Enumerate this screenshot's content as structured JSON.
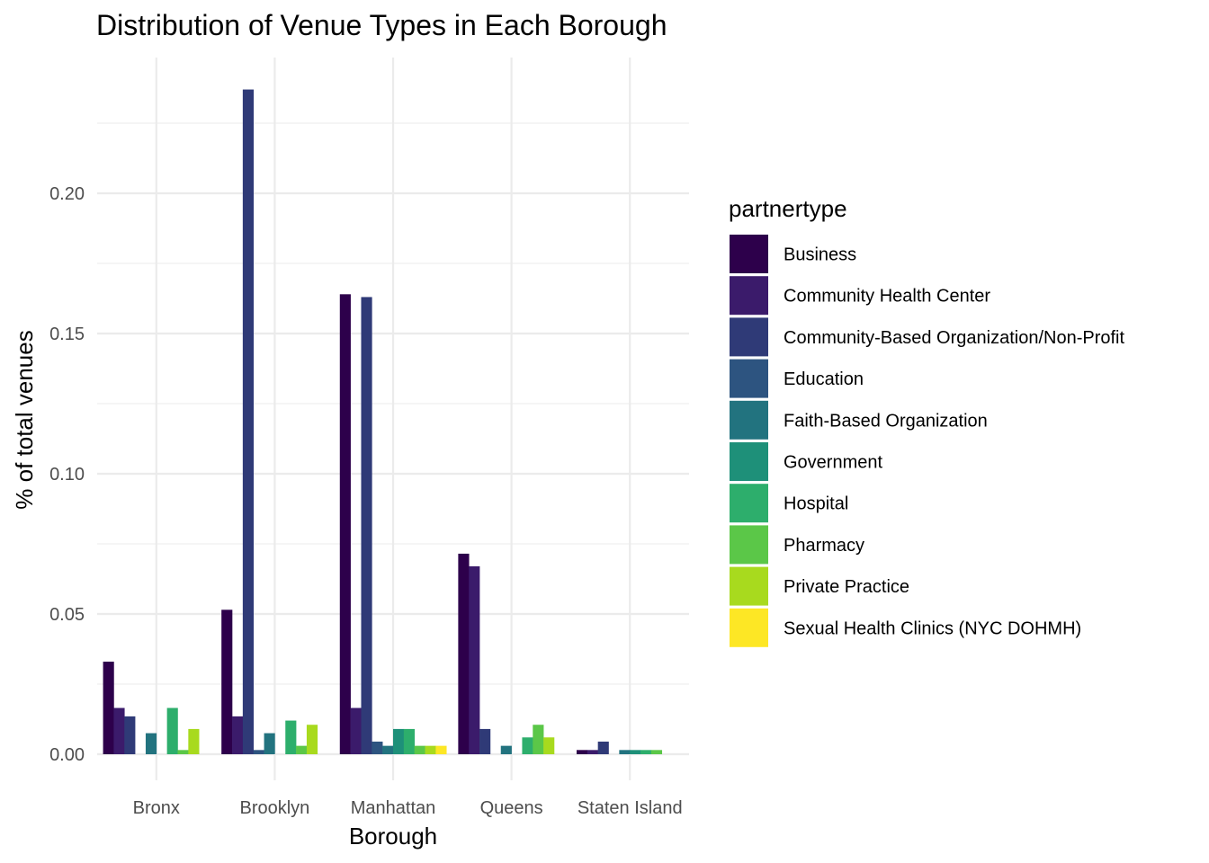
{
  "chart_data": {
    "type": "bar",
    "title": "Distribution of Venue Types in Each Borough",
    "xlabel": "Borough",
    "ylabel": "% of total venues",
    "legend_title": "partnertype",
    "legend_position": "right",
    "grid": true,
    "ylim": [
      0,
      0.24
    ],
    "yticks": [
      "0.00",
      "0.05",
      "0.10",
      "0.15",
      "0.20"
    ],
    "categories": [
      "Bronx",
      "Brooklyn",
      "Manhattan",
      "Queens",
      "Staten Island"
    ],
    "series": [
      {
        "name": "Business",
        "color": "#2D004B",
        "values": [
          0.033,
          0.0515,
          0.164,
          0.0715,
          0.0015
        ]
      },
      {
        "name": "Community Health Center",
        "color": "#3B1B6B",
        "values": [
          0.0165,
          0.0135,
          0.0165,
          0.067,
          0.0015
        ]
      },
      {
        "name": "Community-Based Organization/Non-Profit",
        "color": "#2F3A77",
        "values": [
          0.0135,
          0.237,
          0.163,
          0.009,
          0.0045
        ]
      },
      {
        "name": "Education",
        "color": "#2D5480",
        "values": [
          null,
          0.0015,
          0.0045,
          null,
          null
        ]
      },
      {
        "name": "Faith-Based Organization",
        "color": "#22737F",
        "values": [
          0.0075,
          0.0075,
          0.003,
          0.003,
          0.0015
        ]
      },
      {
        "name": "Government",
        "color": "#1E9079",
        "values": [
          null,
          null,
          0.009,
          null,
          0.0015
        ]
      },
      {
        "name": "Hospital",
        "color": "#2DAE6C",
        "values": [
          0.0165,
          0.012,
          0.009,
          0.006,
          0.0015
        ]
      },
      {
        "name": "Pharmacy",
        "color": "#5BC748",
        "values": [
          0.0015,
          0.003,
          0.003,
          0.0105,
          0.0015
        ]
      },
      {
        "name": "Private Practice",
        "color": "#A8DA1E",
        "values": [
          0.009,
          0.0105,
          0.003,
          0.006,
          null
        ]
      },
      {
        "name": "Sexual Health Clinics (NYC DOHMH)",
        "color": "#FDE725",
        "values": [
          null,
          null,
          0.003,
          null,
          null
        ]
      }
    ]
  }
}
